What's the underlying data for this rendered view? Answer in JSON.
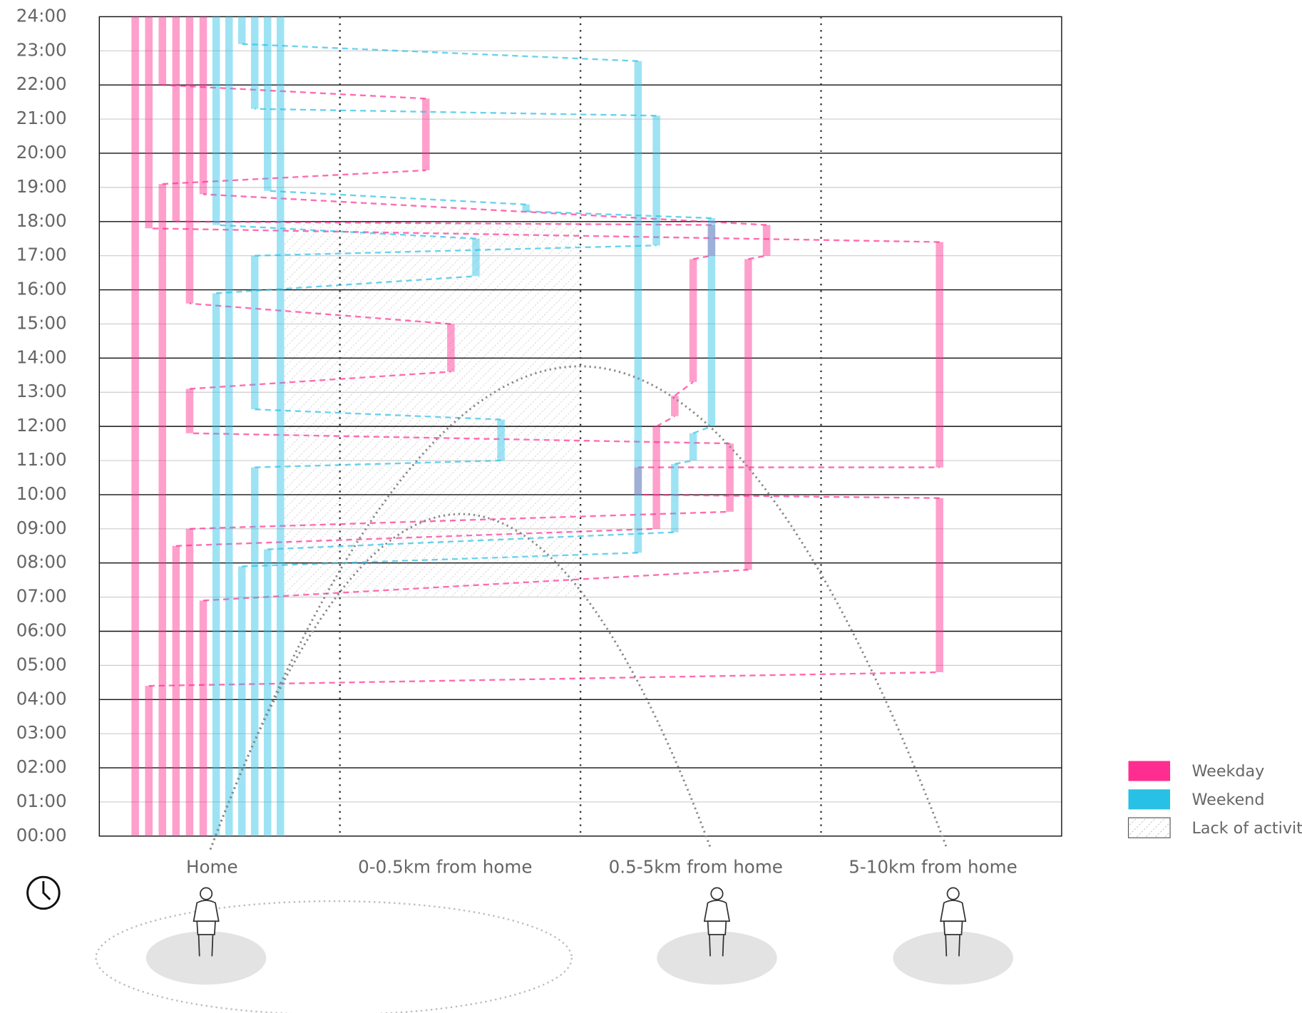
{
  "chart_data": {
    "type": "timeline",
    "categories": [
      "Home",
      "0-0.5km from home",
      "0.5-5km from home",
      "5-10km from home"
    ],
    "ylim": [
      0,
      24
    ],
    "yticks": [
      {
        "value": 0,
        "label": "00:00"
      },
      {
        "value": 1,
        "label": "01:00"
      },
      {
        "value": 2,
        "label": "02:00"
      },
      {
        "value": 3,
        "label": "03:00"
      },
      {
        "value": 4,
        "label": "04:00"
      },
      {
        "value": 5,
        "label": "05:00"
      },
      {
        "value": 6,
        "label": "06:00"
      },
      {
        "value": 7,
        "label": "07:00"
      },
      {
        "value": 8,
        "label": "08:00"
      },
      {
        "value": 9,
        "label": "09:00"
      },
      {
        "value": 10,
        "label": "10:00"
      },
      {
        "value": 11,
        "label": "11:00"
      },
      {
        "value": 12,
        "label": "12:00"
      },
      {
        "value": 13,
        "label": "13:00"
      },
      {
        "value": 14,
        "label": "14:00"
      },
      {
        "value": 15,
        "label": "15:00"
      },
      {
        "value": 16,
        "label": "16:00"
      },
      {
        "value": 17,
        "label": "17:00"
      },
      {
        "value": 18,
        "label": "18:00"
      },
      {
        "value": 19,
        "label": "19:00"
      },
      {
        "value": 20,
        "label": "20:00"
      },
      {
        "value": 21,
        "label": "21:00"
      },
      {
        "value": 22,
        "label": "22:00"
      },
      {
        "value": 23,
        "label": "23:00"
      },
      {
        "value": 24,
        "label": "24:00"
      }
    ],
    "series": [
      {
        "name": "Weekday",
        "color": "#ff2d8f",
        "days": [
          [
            [
              0,
              0,
              24
            ]
          ],
          [
            [
              0,
              0,
              4.4
            ],
            [
              3,
              4.8,
              9.9
            ],
            [
              2,
              10.0,
              10.8
            ],
            [
              3,
              10.8,
              17.4
            ],
            [
              0,
              17.8,
              24
            ]
          ],
          [
            [
              0,
              0,
              19.1
            ],
            [
              1,
              19.5,
              21.6
            ],
            [
              0,
              22,
              24
            ]
          ],
          [
            [
              0,
              0,
              8.5
            ],
            [
              2,
              9.0,
              12.0
            ],
            [
              2,
              12.3,
              12.9
            ],
            [
              2,
              13.3,
              16.9
            ],
            [
              2,
              17.0,
              17.9
            ],
            [
              0,
              18.0,
              24
            ]
          ],
          [
            [
              0,
              0,
              9.0
            ],
            [
              2,
              9.5,
              11.5
            ],
            [
              0,
              11.8,
              13.1
            ],
            [
              1,
              13.6,
              15.0
            ],
            [
              0,
              15.6,
              24
            ]
          ],
          [
            [
              0,
              0,
              6.9
            ],
            [
              2,
              7.8,
              16.9
            ],
            [
              2,
              17.0,
              17.9
            ],
            [
              0,
              18.8,
              24
            ]
          ]
        ]
      },
      {
        "name": "Weekend",
        "color": "#29c0e6",
        "days": [
          [
            [
              0,
              0,
              15.9
            ],
            [
              1,
              16.4,
              17.5
            ],
            [
              0,
              17.9,
              24
            ]
          ],
          [
            [
              0,
              0,
              24
            ]
          ],
          [
            [
              0,
              0,
              7.9
            ],
            [
              2,
              8.3,
              22.7
            ],
            [
              0,
              23.2,
              24
            ]
          ],
          [
            [
              0,
              0,
              10.8
            ],
            [
              1,
              11.0,
              12.2
            ],
            [
              0,
              12.5,
              17.0
            ],
            [
              2,
              17.3,
              21.1
            ],
            [
              0,
              21.3,
              24
            ]
          ],
          [
            [
              0,
              0,
              8.4
            ],
            [
              2,
              8.9,
              10.9
            ],
            [
              2,
              11.0,
              11.8
            ],
            [
              2,
              12.0,
              18.1
            ],
            [
              1,
              18.3,
              18.5
            ],
            [
              0,
              18.9,
              24
            ]
          ],
          [
            [
              0,
              0,
              24
            ]
          ]
        ]
      }
    ],
    "lack_of_activity": {
      "name": "Lack of activity",
      "start": 7,
      "end": 18
    }
  }
}
